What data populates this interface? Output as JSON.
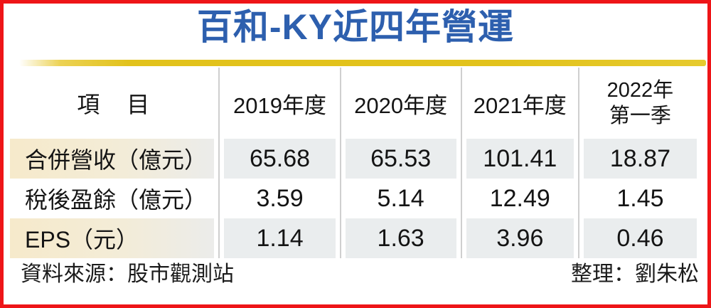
{
  "title": "百和-KY近四年營運",
  "table": {
    "item_header": "項　目",
    "year_columns": [
      [
        "2019年度"
      ],
      [
        "2020年度"
      ],
      [
        "2021年度"
      ],
      [
        "2022年",
        "第一季"
      ]
    ],
    "rows": [
      {
        "label": "合併營收（億元）",
        "values": [
          "65.68",
          "65.53",
          "101.41",
          "18.87"
        ],
        "shaded": true
      },
      {
        "label": "稅後盈餘（億元）",
        "values": [
          "3.59",
          "5.14",
          "12.49",
          "1.45"
        ],
        "shaded": false
      },
      {
        "label": "EPS（元）",
        "values": [
          "1.14",
          "1.63",
          "3.96",
          "0.46"
        ],
        "shaded": true
      }
    ]
  },
  "footer": {
    "source": "資料來源：股市觀測站",
    "compiled_by": "整理：劉朱松"
  },
  "colors": {
    "frame-red": "#ee1518",
    "title-blue": "#2d5fae",
    "gold": "#e2c21b",
    "row-cream": "#f6eacb",
    "row-gray": "#eaedee",
    "separator": "#cfcfcf"
  },
  "chart_data": {
    "type": "table",
    "title": "百和-KY近四年營運",
    "columns": [
      "項目",
      "2019年度",
      "2020年度",
      "2021年度",
      "2022年第一季"
    ],
    "rows": [
      {
        "label": "合併營收（億元）",
        "values": [
          65.68,
          65.53,
          101.41,
          18.87
        ]
      },
      {
        "label": "稅後盈餘（億元）",
        "values": [
          3.59,
          5.14,
          12.49,
          1.45
        ]
      },
      {
        "label": "EPS（元）",
        "values": [
          1.14,
          1.63,
          3.96,
          0.46
        ]
      }
    ],
    "source": "資料來源：股市觀測站",
    "compiled_by": "整理：劉朱松",
    "layout": {
      "shaded_rows": [
        0,
        2
      ],
      "header_position": "top",
      "grid": "vertical-separators-only"
    }
  }
}
